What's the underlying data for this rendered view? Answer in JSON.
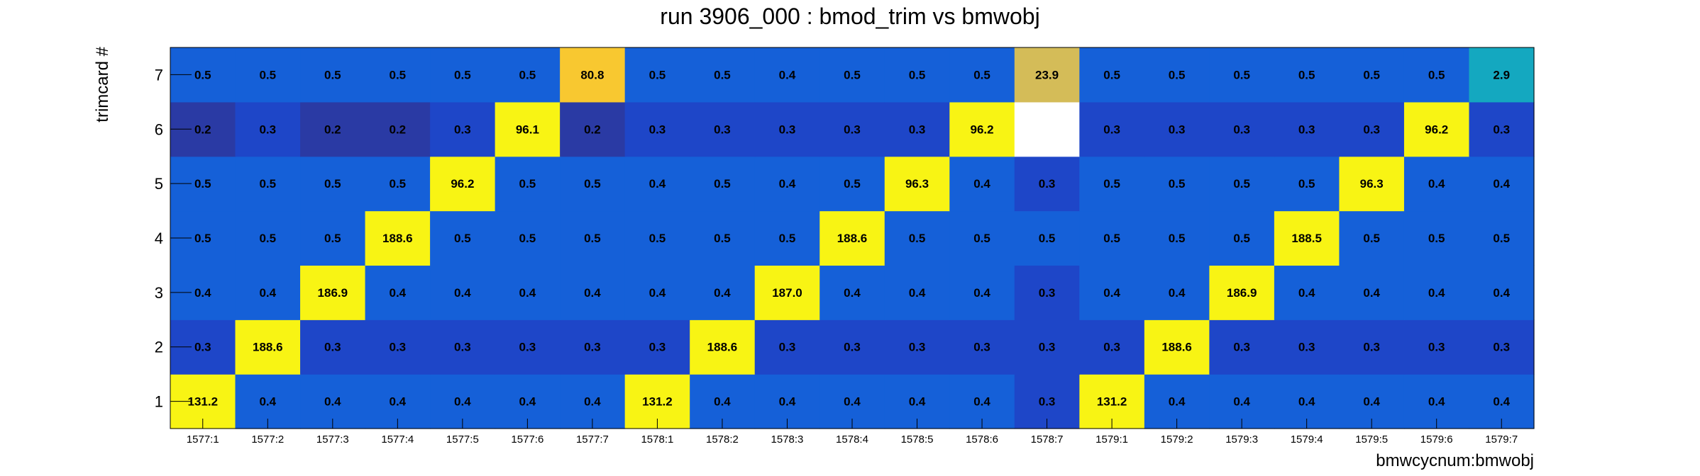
{
  "chart_data": {
    "type": "heatmap",
    "title": "run 3906_000 : bmod_trim vs bmwobj",
    "xlabel": "bmwcycnum:bmwobj",
    "ylabel": "trimcard #",
    "x_categories": [
      "1577:1",
      "1577:2",
      "1577:3",
      "1577:4",
      "1577:5",
      "1577:6",
      "1577:7",
      "1578:1",
      "1578:2",
      "1578:3",
      "1578:4",
      "1578:5",
      "1578:6",
      "1578:7",
      "1579:1",
      "1579:2",
      "1579:3",
      "1579:4",
      "1579:5",
      "1579:6",
      "1579:7"
    ],
    "y_categories": [
      "1",
      "2",
      "3",
      "4",
      "5",
      "6",
      "7"
    ],
    "values": [
      [
        "131.2",
        "0.4",
        "0.4",
        "0.4",
        "0.4",
        "0.4",
        "0.4",
        "131.2",
        "0.4",
        "0.4",
        "0.4",
        "0.4",
        "0.4",
        "0.3",
        "131.2",
        "0.4",
        "0.4",
        "0.4",
        "0.4",
        "0.4",
        "0.4"
      ],
      [
        "0.3",
        "188.6",
        "0.3",
        "0.3",
        "0.3",
        "0.3",
        "0.3",
        "0.3",
        "188.6",
        "0.3",
        "0.3",
        "0.3",
        "0.3",
        "0.3",
        "0.3",
        "188.6",
        "0.3",
        "0.3",
        "0.3",
        "0.3",
        "0.3"
      ],
      [
        "0.4",
        "0.4",
        "186.9",
        "0.4",
        "0.4",
        "0.4",
        "0.4",
        "0.4",
        "0.4",
        "187.0",
        "0.4",
        "0.4",
        "0.4",
        "0.3",
        "0.4",
        "0.4",
        "186.9",
        "0.4",
        "0.4",
        "0.4",
        "0.4"
      ],
      [
        "0.5",
        "0.5",
        "0.5",
        "188.6",
        "0.5",
        "0.5",
        "0.5",
        "0.5",
        "0.5",
        "0.5",
        "188.6",
        "0.5",
        "0.5",
        "0.5",
        "0.5",
        "0.5",
        "0.5",
        "188.5",
        "0.5",
        "0.5",
        "0.5"
      ],
      [
        "0.5",
        "0.5",
        "0.5",
        "0.5",
        "96.2",
        "0.5",
        "0.5",
        "0.4",
        "0.5",
        "0.4",
        "0.5",
        "96.3",
        "0.4",
        "0.3",
        "0.5",
        "0.5",
        "0.5",
        "0.5",
        "96.3",
        "0.4",
        "0.4"
      ],
      [
        "0.2",
        "0.3",
        "0.2",
        "0.2",
        "0.3",
        "96.1",
        "0.2",
        "0.3",
        "0.3",
        "0.3",
        "0.3",
        "0.3",
        "96.2",
        "",
        "0.3",
        "0.3",
        "0.3",
        "0.3",
        "0.3",
        "96.2",
        "0.3"
      ],
      [
        "0.5",
        "0.5",
        "0.5",
        "0.5",
        "0.5",
        "0.5",
        "80.8",
        "0.5",
        "0.5",
        "0.4",
        "0.5",
        "0.5",
        "0.5",
        "23.9",
        "0.5",
        "0.5",
        "0.5",
        "0.5",
        "0.5",
        "0.5",
        "2.9"
      ]
    ],
    "colors": {
      "low_dark": "#2a3aa4",
      "low_mid": "#1e46c8",
      "low": "#1560d8",
      "high": "#f8f414",
      "mid_orange": "#f8c830",
      "mid_tan": "#d4bc58",
      "mid_teal": "#14a8c0",
      "empty": "#ffffff"
    }
  }
}
